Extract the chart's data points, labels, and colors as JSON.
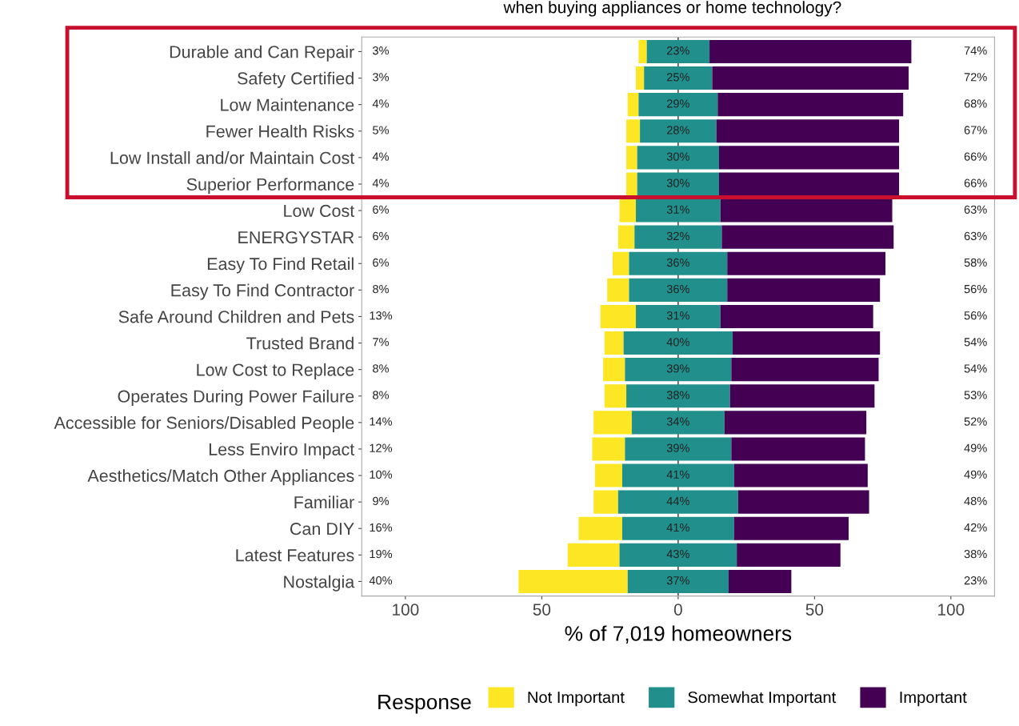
{
  "chart_data": {
    "type": "bar",
    "orientation": "horizontal",
    "title": "when buying appliances or home technology?",
    "xlabel": "% of 7,019 homeowners",
    "legend_title": "Response",
    "categories": [
      "Durable and Can Repair",
      "Safety Certified",
      "Low Maintenance",
      "Fewer Health Risks",
      "Low Install and/or Maintain Cost",
      "Superior Performance",
      "Low Cost",
      "ENERGYSTAR",
      "Easy To Find Retail",
      "Easy To Find Contractor",
      "Safe Around Children and Pets",
      "Trusted Brand",
      "Low Cost to Replace",
      "Operates During Power Failure",
      "Accessible for Seniors/Disabled People",
      "Less Enviro Impact",
      "Aesthetics/Match Other Appliances",
      "Familiar",
      "Can DIY",
      "Latest Features",
      "Nostalgia"
    ],
    "series": [
      {
        "name": "Not Important",
        "color": "#fde725",
        "values": [
          3,
          3,
          4,
          5,
          4,
          4,
          6,
          6,
          6,
          8,
          13,
          7,
          8,
          8,
          14,
          12,
          10,
          9,
          16,
          19,
          40
        ],
        "base": [
          -14.5,
          -15.5,
          -18.5,
          -19,
          -19,
          -19,
          -21.5,
          -22,
          -24,
          -26,
          -28.5,
          -27,
          -27.5,
          -27,
          -31,
          -31.5,
          -30.5,
          -31,
          -36.5,
          -40.5,
          -58.5
        ],
        "value_labels": [
          "3%",
          "3%",
          "4%",
          "5%",
          "4%",
          "4%",
          "6%",
          "6%",
          "6%",
          "8%",
          "13%",
          "7%",
          "8%",
          "8%",
          "14%",
          "12%",
          "10%",
          "9%",
          "16%",
          "19%",
          "40%"
        ]
      },
      {
        "name": "Somewhat Important",
        "color": "#21908c",
        "values": [
          23,
          25,
          29,
          28,
          30,
          30,
          31,
          32,
          36,
          36,
          31,
          40,
          39,
          38,
          34,
          39,
          41,
          44,
          41,
          43,
          37
        ],
        "base": [
          -11.5,
          -12.5,
          -14.5,
          -14,
          -15,
          -15,
          -15.5,
          -16,
          -18,
          -18,
          -15.5,
          -20,
          -19.5,
          -19,
          -17,
          -19.5,
          -20.5,
          -22,
          -20.5,
          -21.5,
          -18.5
        ],
        "value_labels": [
          "23%",
          "25%",
          "29%",
          "28%",
          "30%",
          "30%",
          "31%",
          "32%",
          "36%",
          "36%",
          "31%",
          "40%",
          "39%",
          "38%",
          "34%",
          "39%",
          "41%",
          "44%",
          "41%",
          "43%",
          "37%"
        ]
      },
      {
        "name": "Important",
        "color": "#440154",
        "values": [
          74,
          72,
          68,
          67,
          66,
          66,
          63,
          63,
          58,
          56,
          56,
          54,
          54,
          53,
          52,
          49,
          49,
          48,
          42,
          38,
          23
        ],
        "base": [
          11.5,
          12.5,
          14.5,
          14,
          15,
          15,
          15.5,
          16,
          18,
          18,
          15.5,
          20,
          19.5,
          19,
          17,
          19.5,
          20.5,
          22,
          20.5,
          21.5,
          18.5
        ],
        "value_labels": [
          "74%",
          "72%",
          "68%",
          "67%",
          "66%",
          "66%",
          "63%",
          "63%",
          "58%",
          "56%",
          "56%",
          "54%",
          "54%",
          "53%",
          "52%",
          "49%",
          "49%",
          "48%",
          "42%",
          "38%",
          "23%"
        ]
      }
    ],
    "xlim": [
      -116,
      116
    ],
    "xticks": [
      {
        "value": -100,
        "label": "100"
      },
      {
        "value": -50,
        "label": "50"
      },
      0,
      50,
      100
    ],
    "ref_lines": [
      {
        "axis": "x",
        "value": 0,
        "color": "#333333"
      }
    ],
    "legend": "bottom"
  }
}
